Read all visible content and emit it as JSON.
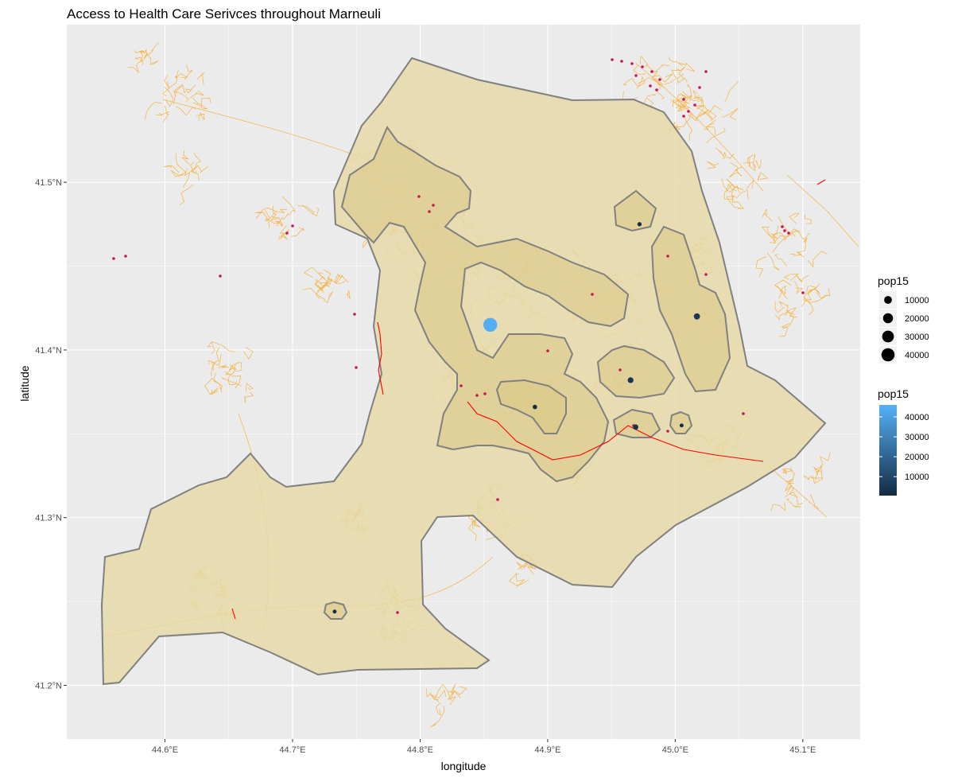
{
  "title": "Access to Health Care Serivces throughout Marneuli",
  "x_axis": {
    "label": "longitude",
    "ticks": [
      {
        "value": 44.6,
        "label": "44.6°E"
      },
      {
        "value": 44.7,
        "label": "44.7°E"
      },
      {
        "value": 44.8,
        "label": "44.8°E"
      },
      {
        "value": 44.9,
        "label": "44.9°E"
      },
      {
        "value": 45.0,
        "label": "45.0°E"
      },
      {
        "value": 45.1,
        "label": "45.1°E"
      }
    ],
    "range": [
      44.523,
      45.145
    ]
  },
  "y_axis": {
    "label": "latitude",
    "ticks": [
      {
        "value": 41.2,
        "label": "41.2°N"
      },
      {
        "value": 41.3,
        "label": "41.3°N"
      },
      {
        "value": 41.4,
        "label": "41.4°N"
      },
      {
        "value": 41.5,
        "label": "41.5°N"
      }
    ],
    "range": [
      41.168,
      41.594
    ]
  },
  "legend_size": {
    "title": "pop15",
    "entries": [
      {
        "label": "10000",
        "value": 10000
      },
      {
        "label": "20000",
        "value": 20000
      },
      {
        "label": "30000",
        "value": 30000
      },
      {
        "label": "40000",
        "value": 40000
      }
    ]
  },
  "legend_color": {
    "title": "pop15",
    "ticks": [
      {
        "label": "40000",
        "value": 40000
      },
      {
        "label": "30000",
        "value": 30000
      },
      {
        "label": "20000",
        "value": 20000
      },
      {
        "label": "10000",
        "value": 10000
      }
    ],
    "range": [
      500,
      46000
    ],
    "low_color": "#132B43",
    "high_color": "#56B1F7"
  },
  "colors": {
    "panel_background": "#ebebeb",
    "grid": "#ffffff",
    "service_area_fill": "#e6d9a8",
    "service_area_fill_inner": "#d9c885",
    "service_area_outline": "#808080",
    "roads": "#f5b342",
    "rail": "#ff0000",
    "facilities": "#c2185b"
  },
  "chart_data": {
    "type": "map",
    "title": "Access to Health Care Serivces throughout Marneuli",
    "xlabel": "longitude",
    "ylabel": "latitude",
    "grid": true,
    "legend_placement": "right",
    "settlements": [
      {
        "lon": 44.855,
        "lat": 41.415,
        "pop15": 45000
      },
      {
        "lon": 45.017,
        "lat": 41.42,
        "pop15": 5000
      },
      {
        "lon": 44.965,
        "lat": 41.382,
        "pop15": 4000
      },
      {
        "lon": 44.969,
        "lat": 41.354,
        "pop15": 3000
      },
      {
        "lon": 44.89,
        "lat": 41.366,
        "pop15": 1500
      },
      {
        "lon": 44.972,
        "lat": 41.475,
        "pop15": 1200
      },
      {
        "lon": 45.005,
        "lat": 41.355,
        "pop15": 800
      },
      {
        "lon": 44.733,
        "lat": 41.244,
        "pop15": 800
      }
    ]
  }
}
